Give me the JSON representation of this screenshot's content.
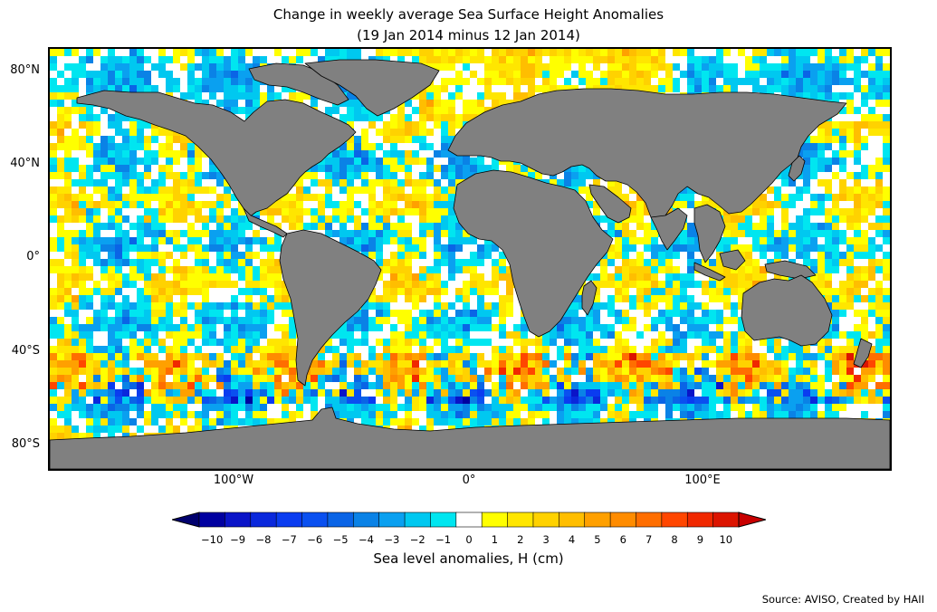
{
  "title_line1": "Change in weekly average Sea Surface Height Anomalies",
  "title_line2": "(19 Jan 2014 minus 12 Jan 2014)",
  "lat_labels": [
    "80°N",
    "40°N",
    "0°",
    "40°S",
    "80°S"
  ],
  "lon_labels": [
    "100°W",
    "0°",
    "100°E"
  ],
  "colorbar": {
    "label": "Sea level anomalies, H (cm)",
    "ticks": [
      "−10",
      "−9",
      "−8",
      "−7",
      "−6",
      "−5",
      "−4",
      "−3",
      "−2",
      "−1",
      "0",
      "1",
      "2",
      "3",
      "4",
      "5",
      "6",
      "7",
      "8",
      "9",
      "10"
    ],
    "colors": [
      "#00006e",
      "#0000a0",
      "#0a14c8",
      "#0a28dc",
      "#0a3cf0",
      "#0a50f0",
      "#0a64e6",
      "#0a82e6",
      "#0aa0f0",
      "#00c8f0",
      "#00e6f0",
      "#ffffff",
      "#ffff00",
      "#ffe600",
      "#ffd200",
      "#ffbe00",
      "#ffa000",
      "#ff8c00",
      "#ff6e00",
      "#ff4600",
      "#f02800",
      "#dc1400",
      "#c80000"
    ],
    "extend": "both"
  },
  "source": "Source: AVISO, Created by HAII",
  "colors": {
    "land": "#808080",
    "coast": "#000000",
    "frame": "#000000"
  }
}
